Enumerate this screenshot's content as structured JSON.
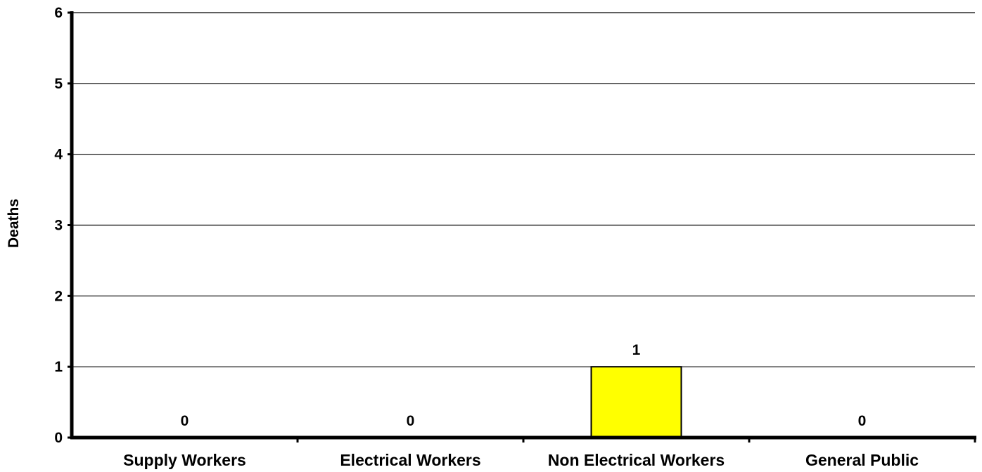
{
  "chart_data": {
    "type": "bar",
    "categories": [
      "Supply Workers",
      "Electrical Workers",
      "Non Electrical Workers",
      "General Public"
    ],
    "values": [
      0,
      0,
      1,
      0
    ],
    "data_labels": [
      "0",
      "0",
      "1",
      "0"
    ],
    "title": "",
    "xlabel": "",
    "ylabel": "Deaths",
    "ylim": [
      0,
      6
    ],
    "yticks": [
      "0",
      "1",
      "2",
      "3",
      "4",
      "5",
      "6"
    ],
    "grid": true,
    "legend": "none",
    "bar_color": "#FFFF00",
    "bar_outline": "#000000"
  }
}
